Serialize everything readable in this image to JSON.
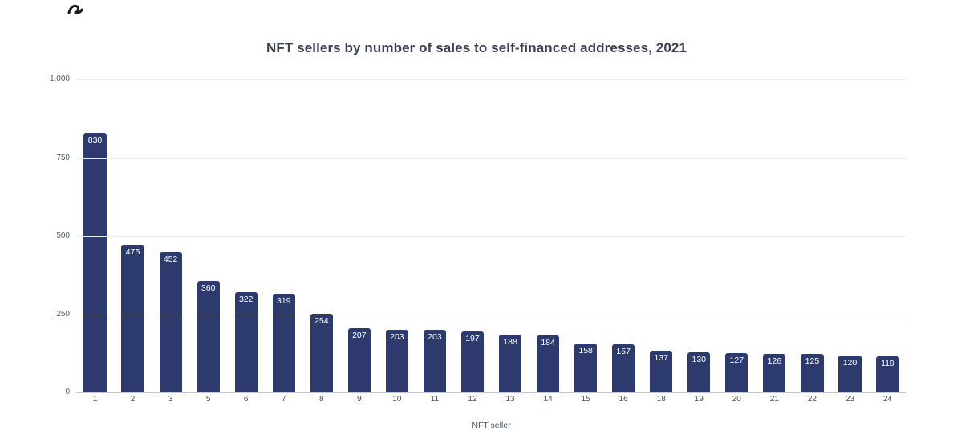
{
  "chart_data": {
    "type": "bar",
    "title": "NFT sellers by number of sales to self-financed addresses, 2021",
    "xlabel": "NFT seller",
    "ylabel": "",
    "categories": [
      "1",
      "2",
      "3",
      "5",
      "6",
      "7",
      "8",
      "9",
      "10",
      "11",
      "12",
      "13",
      "14",
      "15",
      "16",
      "18",
      "19",
      "20",
      "21",
      "22",
      "23",
      "24"
    ],
    "values": [
      830,
      475,
      452,
      360,
      322,
      319,
      254,
      207,
      203,
      203,
      197,
      188,
      184,
      158,
      157,
      137,
      130,
      127,
      126,
      125,
      120,
      119
    ],
    "ylim": [
      0,
      1000
    ],
    "yticks": [
      "0",
      "250",
      "500",
      "750",
      "1,000"
    ],
    "ytick_values": [
      0,
      250,
      500,
      750,
      1000
    ],
    "grid": true,
    "legend": "none",
    "bar_color": "#2d3a6e",
    "value_label_color": "#ffffff"
  }
}
